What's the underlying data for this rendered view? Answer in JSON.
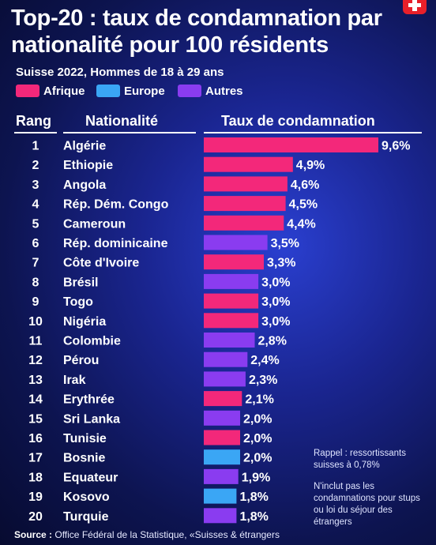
{
  "header": {
    "title": "Top-20 : taux de condamnation par nationalité pour 100 résidents",
    "subtitle": "Suisse 2022, Hommes de 18 à 29 ans"
  },
  "legend": [
    {
      "label": "Afrique",
      "color": "#f3287a"
    },
    {
      "label": "Europe",
      "color": "#3aa6f5"
    },
    {
      "label": "Autres",
      "color": "#8a3cf0"
    }
  ],
  "columns": {
    "rank": "Rang",
    "nationality": "Nationalité",
    "rate": "Taux de condamnation"
  },
  "chart_data": {
    "type": "bar",
    "orientation": "horizontal",
    "title": "Top-20 : taux de condamnation par nationalité pour 100 résidents",
    "subtitle": "Suisse 2022, Hommes de 18 à 29 ans",
    "unit": "%",
    "xlim": [
      0,
      9.6
    ],
    "categories": [
      "Algérie",
      "Ethiopie",
      "Angola",
      "Rép. Dém. Congo",
      "Cameroun",
      "Rép. dominicaine",
      "Côte d'Ivoire",
      "Brésil",
      "Togo",
      "Nigéria",
      "Colombie",
      "Pérou",
      "Irak",
      "Erythrée",
      "Sri Lanka",
      "Tunisie",
      "Bosnie",
      "Equateur",
      "Kosovo",
      "Turquie"
    ],
    "ranks": [
      "1",
      "2",
      "3",
      "4",
      "5",
      "6",
      "7",
      "8",
      "9",
      "10",
      "11",
      "12",
      "13",
      "14",
      "15",
      "16",
      "17",
      "18",
      "19",
      "20"
    ],
    "values": [
      9.6,
      4.9,
      4.6,
      4.5,
      4.4,
      3.5,
      3.3,
      3.0,
      3.0,
      3.0,
      2.8,
      2.4,
      2.3,
      2.1,
      2.0,
      2.0,
      2.0,
      1.9,
      1.8,
      1.8
    ],
    "value_labels": [
      "9,6%",
      "4,9%",
      "4,6%",
      "4,5%",
      "4,4%",
      "3,5%",
      "3,3%",
      "3,0%",
      "3,0%",
      "3,0%",
      "2,8%",
      "2,4%",
      "2,3%",
      "2,1%",
      "2,0%",
      "2,0%",
      "2,0%",
      "1,9%",
      "1,8%",
      "1,8%"
    ],
    "groups": [
      "Afrique",
      "Afrique",
      "Afrique",
      "Afrique",
      "Afrique",
      "Autres",
      "Afrique",
      "Autres",
      "Afrique",
      "Afrique",
      "Autres",
      "Autres",
      "Autres",
      "Afrique",
      "Autres",
      "Afrique",
      "Europe",
      "Autres",
      "Europe",
      "Autres"
    ]
  },
  "notes": {
    "reminder": "Rappel : ressortissants suisses à 0,78%",
    "exclusion": "N'inclut pas les condamnations pour stups ou loi du séjour des étrangers"
  },
  "source": {
    "label": "Source :",
    "text": "Office Fédéral de la Statistique, «Suisses & étrangers"
  }
}
